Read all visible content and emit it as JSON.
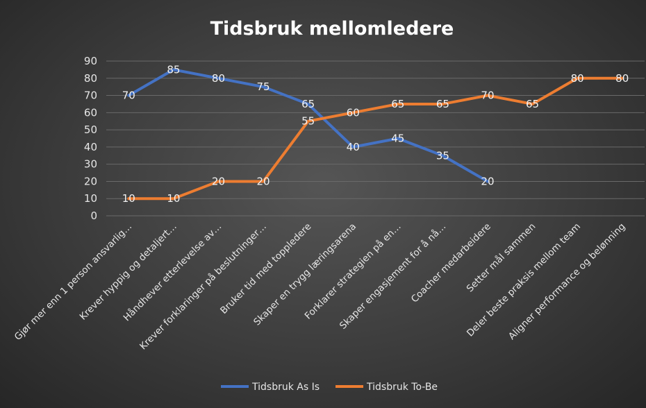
{
  "chart_data": {
    "type": "line",
    "title": "Tidsbruk mellomledere",
    "xlabel": "",
    "ylabel": "",
    "ylim": [
      0,
      90
    ],
    "yticks": [
      0,
      10,
      20,
      30,
      40,
      50,
      60,
      70,
      80,
      90
    ],
    "grid": true,
    "legend": "bottom",
    "categories": [
      "Gjør mer enn 1 person ansvarlig…",
      "Krever hyppig og detaljert…",
      "Håndhever etterlevelse av…",
      "Krever forklaringer på beslutninger…",
      "Bruker tid med toppledere",
      "Skaper en trygg læringsarena",
      "Forklarer strategien på en…",
      "Skaper engasjement for å nå…",
      "Coacher medarbeidere",
      "Setter mål sammen",
      "Deler beste praksis mellom team",
      "Aligner performance og belønning"
    ],
    "series": [
      {
        "name": "Tidsbruk As Is",
        "color": "#4472c4",
        "values": [
          70,
          85,
          80,
          75,
          65,
          40,
          45,
          35,
          20,
          null,
          null,
          null
        ]
      },
      {
        "name": "Tidsbruk To-Be",
        "color": "#ed7d31",
        "values": [
          10,
          10,
          20,
          20,
          55,
          60,
          65,
          65,
          70,
          65,
          80,
          80
        ]
      }
    ]
  }
}
